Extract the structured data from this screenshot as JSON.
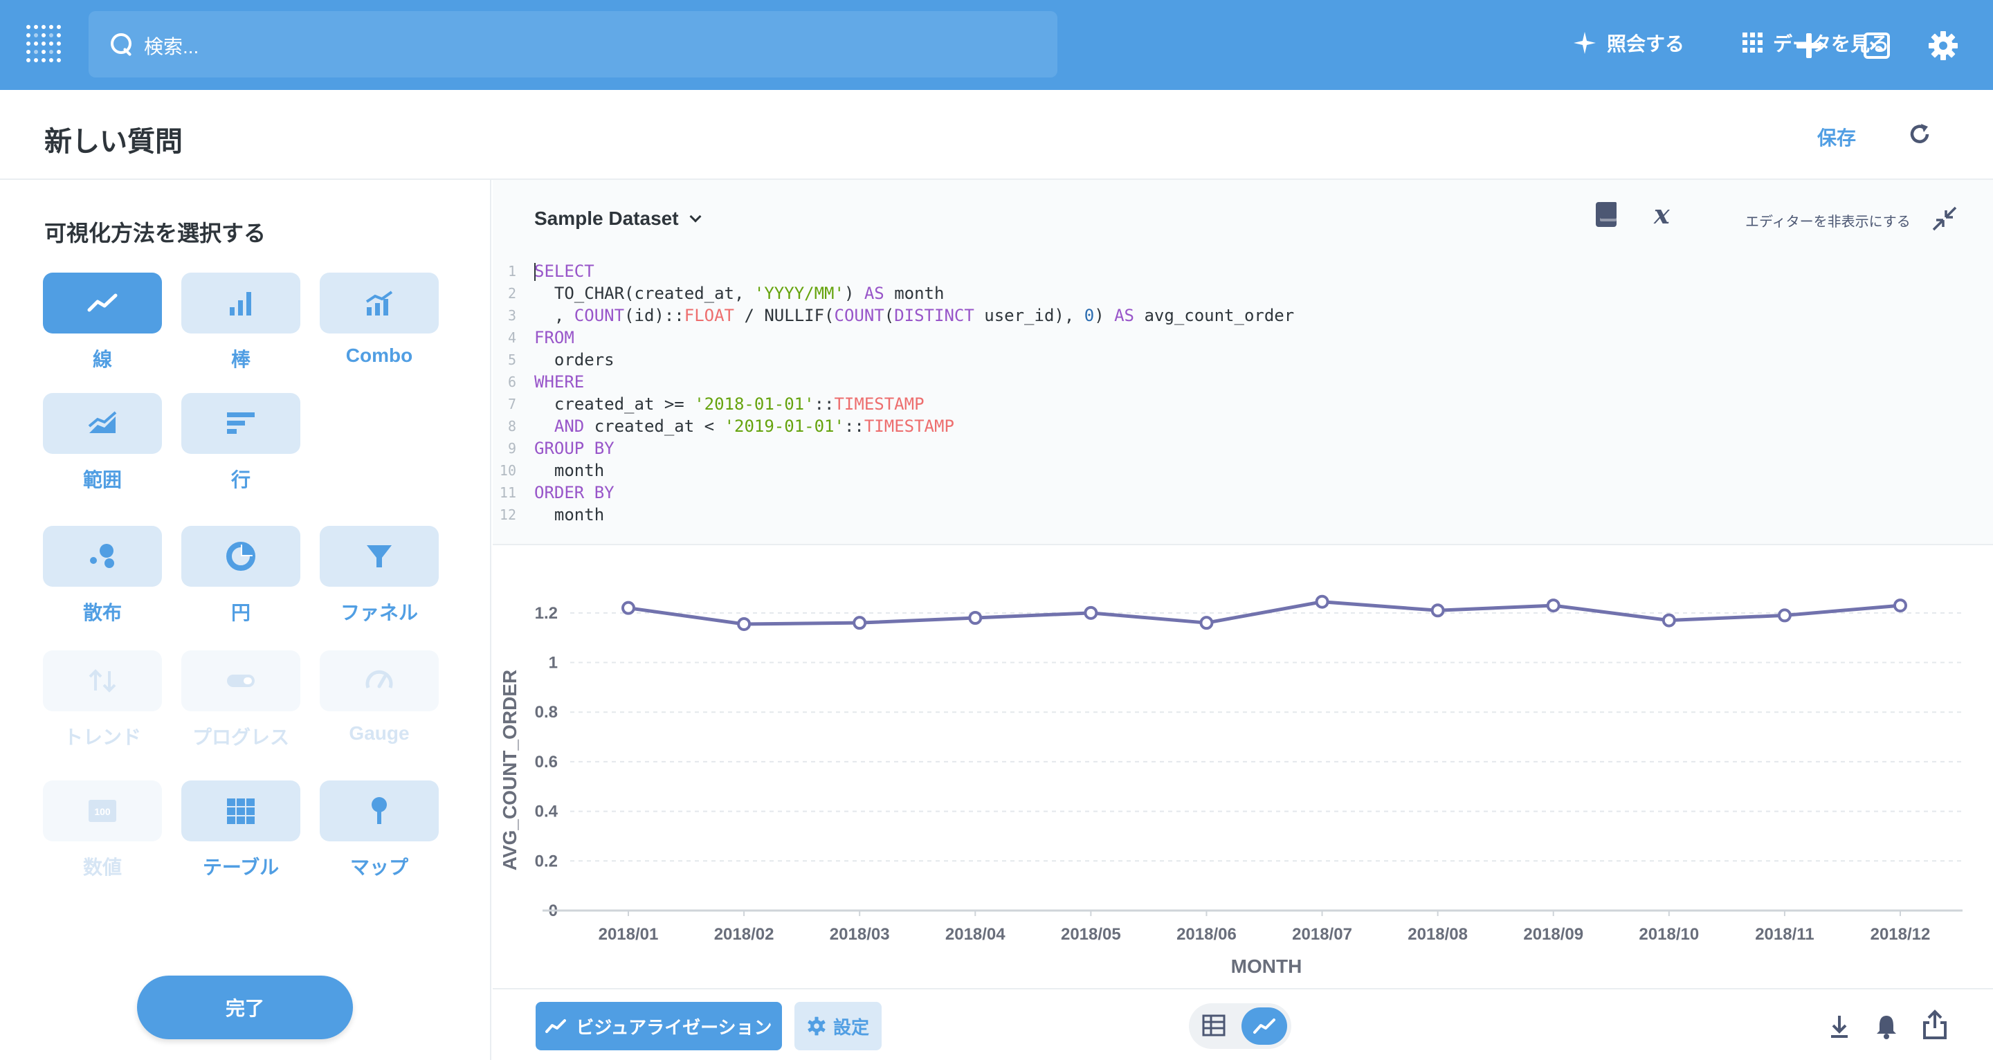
{
  "topnav": {
    "search_placeholder": "検索...",
    "ask_label": "照会する",
    "browse_label": "データを見る"
  },
  "header": {
    "title": "新しい質問",
    "save_label": "保存"
  },
  "sidebar": {
    "heading": "可視化方法を選択する",
    "viz_types": [
      {
        "label": "線",
        "icon": "line-chart-icon",
        "state": "active"
      },
      {
        "label": "棒",
        "icon": "bar-chart-icon",
        "state": "enabled"
      },
      {
        "label": "Combo",
        "icon": "combo-chart-icon",
        "state": "enabled"
      },
      {
        "label": "範囲",
        "icon": "area-chart-icon",
        "state": "enabled"
      },
      {
        "label": "行",
        "icon": "row-chart-icon",
        "state": "enabled"
      },
      {
        "label": "散布",
        "icon": "scatter-icon",
        "state": "enabled"
      },
      {
        "label": "円",
        "icon": "pie-icon",
        "state": "enabled"
      },
      {
        "label": "ファネル",
        "icon": "funnel-icon",
        "state": "enabled"
      },
      {
        "label": "トレンド",
        "icon": "trend-icon",
        "state": "disabled"
      },
      {
        "label": "プログレス",
        "icon": "progress-icon",
        "state": "disabled"
      },
      {
        "label": "Gauge",
        "icon": "gauge-icon",
        "state": "disabled"
      },
      {
        "label": "数値",
        "icon": "number-icon",
        "state": "disabled",
        "icon_text": "100"
      },
      {
        "label": "テーブル",
        "icon": "table-icon",
        "state": "enabled"
      },
      {
        "label": "マップ",
        "icon": "map-pin-icon",
        "state": "enabled"
      }
    ],
    "done_label": "完了"
  },
  "editor": {
    "dataset": "Sample Dataset",
    "hide_editor_label": "エディターを非表示にする",
    "line_numbers": [
      "1",
      "2",
      "3",
      "4",
      "5",
      "6",
      "7",
      "8",
      "9",
      "10",
      "11",
      "12"
    ]
  },
  "chart_data": {
    "type": "line",
    "categories": [
      "2018/01",
      "2018/02",
      "2018/03",
      "2018/04",
      "2018/05",
      "2018/06",
      "2018/07",
      "2018/08",
      "2018/09",
      "2018/10",
      "2018/11",
      "2018/12"
    ],
    "series": [
      {
        "values": [
          1.22,
          1.155,
          1.16,
          1.18,
          1.2,
          1.16,
          1.245,
          1.21,
          1.23,
          1.17,
          1.19,
          1.23
        ]
      }
    ],
    "xlabel": "MONTH",
    "ylabel": "AVG_COUNT_ORDER",
    "yticks": [
      "0",
      "0.2",
      "0.4",
      "0.6",
      "0.8",
      "1",
      "1.2"
    ],
    "ylim": [
      0,
      1.3
    ],
    "grid": true,
    "color": "#7172ad"
  },
  "footer": {
    "viz_button": "ビジュアライゼーション",
    "settings_button": "設定"
  },
  "colors": {
    "brand": "#509ee3",
    "series": "#7172ad"
  }
}
